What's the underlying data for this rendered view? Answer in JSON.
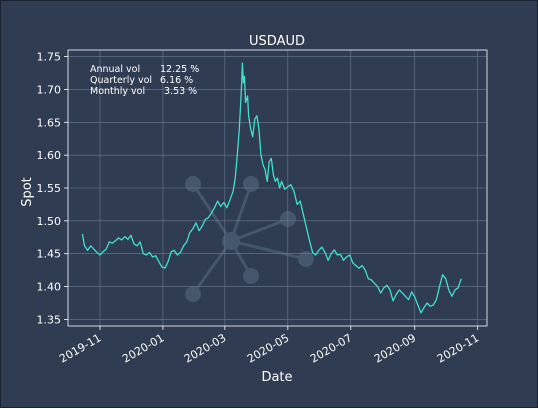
{
  "chart_data": {
    "type": "line",
    "title": "USDAUD",
    "xlabel": "Date",
    "ylabel": "Spot",
    "xlim": [
      "2019-10-01",
      "2020-11-10"
    ],
    "ylim": [
      1.34,
      1.76
    ],
    "yticks": [
      1.35,
      1.4,
      1.45,
      1.5,
      1.55,
      1.6,
      1.65,
      1.7,
      1.75
    ],
    "xticks": [
      "2019-11-01",
      "2020-01-01",
      "2020-03-01",
      "2020-05-01",
      "2020-07-01",
      "2020-09-01",
      "2020-11-01"
    ],
    "xtick_labels": [
      "2019-11",
      "2020-01",
      "2020-03",
      "2020-05",
      "2020-07",
      "2020-09",
      "2020-11"
    ],
    "grid": true,
    "line_color": "#40e0d0",
    "stats": [
      {
        "label": "Annual vol",
        "value": "12.25 %"
      },
      {
        "label": "Quarterly vol",
        "value": "6.16 %"
      },
      {
        "label": "Monthly vol",
        "value": "3.53 %"
      }
    ],
    "series": [
      {
        "x": [
          "2019-10-15",
          "2019-10-17",
          "2019-10-20",
          "2019-10-23",
          "2019-10-26",
          "2019-10-29",
          "2019-11-01",
          "2019-11-04",
          "2019-11-07",
          "2019-11-10",
          "2019-11-13",
          "2019-11-16",
          "2019-11-19",
          "2019-11-22",
          "2019-11-25",
          "2019-11-28",
          "2019-12-01",
          "2019-12-04",
          "2019-12-07",
          "2019-12-10",
          "2019-12-13",
          "2019-12-16",
          "2019-12-19",
          "2019-12-22",
          "2019-12-25",
          "2019-12-28",
          "2019-12-31",
          "2020-01-03",
          "2020-01-06",
          "2020-01-09",
          "2020-01-12",
          "2020-01-15",
          "2020-01-18",
          "2020-01-21",
          "2020-01-24",
          "2020-01-27",
          "2020-01-30",
          "2020-02-02",
          "2020-02-05",
          "2020-02-08",
          "2020-02-11",
          "2020-02-14",
          "2020-02-17",
          "2020-02-20",
          "2020-02-23",
          "2020-02-26",
          "2020-02-29",
          "2020-03-03",
          "2020-03-06",
          "2020-03-09",
          "2020-03-11",
          "2020-03-13",
          "2020-03-15",
          "2020-03-17",
          "2020-03-18",
          "2020-03-19",
          "2020-03-20",
          "2020-03-21",
          "2020-03-23",
          "2020-03-24",
          "2020-03-26",
          "2020-03-28",
          "2020-03-30",
          "2020-04-01",
          "2020-04-03",
          "2020-04-05",
          "2020-04-07",
          "2020-04-09",
          "2020-04-11",
          "2020-04-13",
          "2020-04-15",
          "2020-04-17",
          "2020-04-19",
          "2020-04-21",
          "2020-04-23",
          "2020-04-25",
          "2020-04-28",
          "2020-05-01",
          "2020-05-04",
          "2020-05-07",
          "2020-05-10",
          "2020-05-13",
          "2020-05-16",
          "2020-05-19",
          "2020-05-22",
          "2020-05-25",
          "2020-05-28",
          "2020-05-31",
          "2020-06-03",
          "2020-06-06",
          "2020-06-09",
          "2020-06-12",
          "2020-06-15",
          "2020-06-18",
          "2020-06-21",
          "2020-06-24",
          "2020-06-27",
          "2020-06-30",
          "2020-07-03",
          "2020-07-06",
          "2020-07-09",
          "2020-07-12",
          "2020-07-15",
          "2020-07-18",
          "2020-07-21",
          "2020-07-24",
          "2020-07-27",
          "2020-07-30",
          "2020-08-02",
          "2020-08-05",
          "2020-08-08",
          "2020-08-11",
          "2020-08-14",
          "2020-08-17",
          "2020-08-20",
          "2020-08-23",
          "2020-08-26",
          "2020-08-29",
          "2020-09-01",
          "2020-09-04",
          "2020-09-07",
          "2020-09-10",
          "2020-09-13",
          "2020-09-16",
          "2020-09-19",
          "2020-09-22",
          "2020-09-25",
          "2020-09-28",
          "2020-10-01",
          "2020-10-04",
          "2020-10-07",
          "2020-10-10",
          "2020-10-13",
          "2020-10-16"
        ],
        "y": [
          1.48,
          1.462,
          1.455,
          1.462,
          1.457,
          1.452,
          1.448,
          1.453,
          1.457,
          1.468,
          1.466,
          1.47,
          1.474,
          1.471,
          1.476,
          1.472,
          1.478,
          1.465,
          1.462,
          1.468,
          1.45,
          1.448,
          1.452,
          1.445,
          1.447,
          1.438,
          1.43,
          1.428,
          1.438,
          1.453,
          1.455,
          1.448,
          1.452,
          1.462,
          1.468,
          1.482,
          1.488,
          1.497,
          1.485,
          1.492,
          1.502,
          1.505,
          1.512,
          1.52,
          1.53,
          1.522,
          1.528,
          1.52,
          1.532,
          1.545,
          1.565,
          1.6,
          1.64,
          1.7,
          1.74,
          1.71,
          1.72,
          1.68,
          1.69,
          1.66,
          1.64,
          1.628,
          1.655,
          1.66,
          1.64,
          1.6,
          1.585,
          1.578,
          1.56,
          1.59,
          1.595,
          1.57,
          1.56,
          1.565,
          1.55,
          1.56,
          1.548,
          1.552,
          1.555,
          1.545,
          1.525,
          1.53,
          1.51,
          1.49,
          1.47,
          1.452,
          1.448,
          1.455,
          1.46,
          1.452,
          1.44,
          1.45,
          1.456,
          1.448,
          1.449,
          1.44,
          1.445,
          1.448,
          1.436,
          1.432,
          1.428,
          1.432,
          1.425,
          1.412,
          1.41,
          1.405,
          1.4,
          1.39,
          1.398,
          1.402,
          1.395,
          1.378,
          1.388,
          1.395,
          1.39,
          1.385,
          1.38,
          1.392,
          1.384,
          1.372,
          1.36,
          1.368,
          1.375,
          1.37,
          1.372,
          1.38,
          1.4,
          1.418,
          1.412,
          1.395,
          1.385,
          1.395,
          1.398,
          1.412
        ]
      }
    ]
  }
}
